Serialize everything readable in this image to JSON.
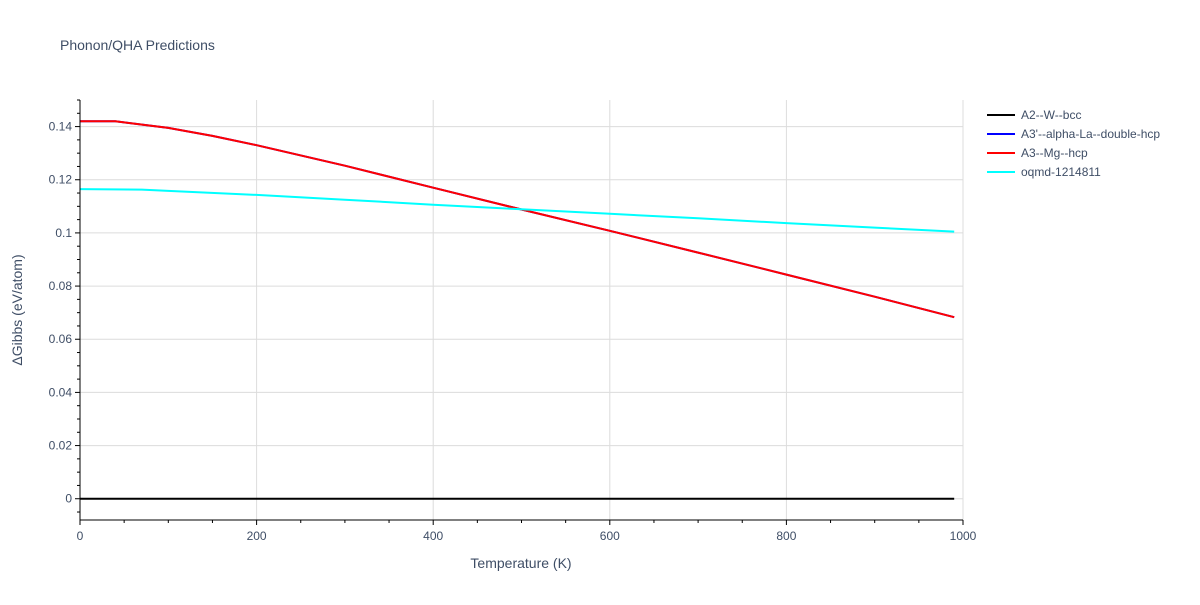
{
  "chart_data": {
    "type": "line",
    "title": "Phonon/QHA Predictions",
    "xlabel": "Temperature (K)",
    "ylabel": "ΔGibbs (eV/atom)",
    "xlim": [
      0,
      1000
    ],
    "ylim": [
      -0.008,
      0.15
    ],
    "x_ticks": [
      0,
      200,
      400,
      600,
      800,
      1000
    ],
    "x_tick_labels": [
      "0",
      "200",
      "400",
      "600",
      "800",
      "1000"
    ],
    "y_ticks": [
      0,
      0.02,
      0.04,
      0.06,
      0.08,
      0.1,
      0.12,
      0.14
    ],
    "y_tick_labels": [
      "0",
      "0.02",
      "0.04",
      "0.06",
      "0.08",
      "0.1",
      "0.12",
      "0.14"
    ],
    "grid": true,
    "legend_position": "right",
    "series": [
      {
        "name": "A2--W--bcc",
        "color": "#000000",
        "x": [
          0,
          100,
          200,
          300,
          400,
          500,
          600,
          700,
          800,
          900,
          990
        ],
        "y": [
          0,
          0,
          0,
          0,
          0,
          0,
          0,
          0,
          0,
          0,
          0
        ]
      },
      {
        "name": "A3'--alpha-La--double-hcp",
        "color": "#0000ff",
        "x": [
          0,
          40,
          100,
          150,
          200,
          300,
          400,
          500,
          600,
          700,
          800,
          900,
          990
        ],
        "y": [
          0.142,
          0.142,
          0.1395,
          0.1365,
          0.133,
          0.1253,
          0.117,
          0.1088,
          0.1008,
          0.0926,
          0.0843,
          0.076,
          0.0683
        ]
      },
      {
        "name": "A3--Mg--hcp",
        "color": "#ff0000",
        "x": [
          0,
          40,
          100,
          150,
          200,
          300,
          400,
          500,
          600,
          700,
          800,
          900,
          990
        ],
        "y": [
          0.142,
          0.142,
          0.1395,
          0.1365,
          0.133,
          0.1253,
          0.117,
          0.1088,
          0.1008,
          0.0926,
          0.0843,
          0.076,
          0.0683
        ]
      },
      {
        "name": "oqmd-1214811",
        "color": "#00ffff",
        "x": [
          0,
          70,
          100,
          200,
          300,
          400,
          500,
          600,
          700,
          800,
          900,
          990
        ],
        "y": [
          0.1165,
          0.1163,
          0.1158,
          0.1143,
          0.1125,
          0.1106,
          0.1089,
          0.1072,
          0.1055,
          0.1037,
          0.102,
          0.1005
        ]
      }
    ]
  }
}
